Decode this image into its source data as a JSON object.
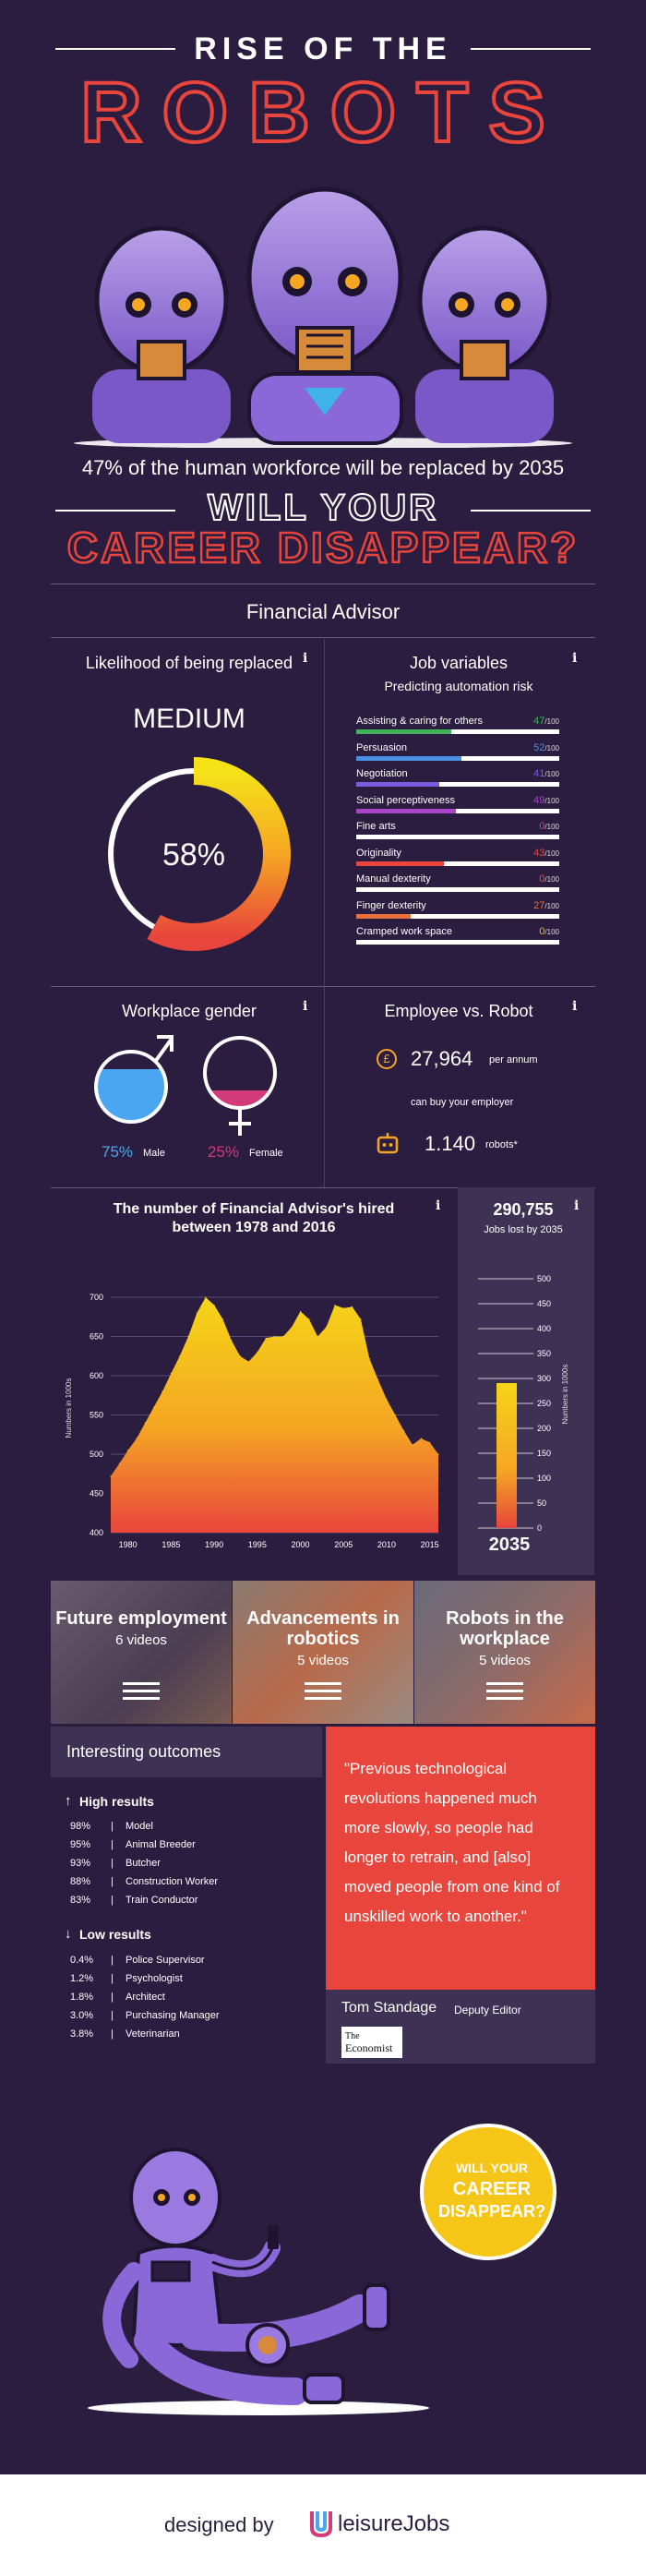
{
  "header": {
    "title_line1": "RISE OF THE",
    "title_line2": "ROBOTS",
    "subtitle": "47% of the human workforce will be replaced by 2035",
    "question_line1": "WILL YOUR",
    "question_line2": "CAREER DISAPPEAR?"
  },
  "job_title": "Financial Advisor",
  "likelihood": {
    "title": "Likelihood of being replaced",
    "level": "MEDIUM",
    "percent_label": "58%",
    "percent": 58
  },
  "job_variables": {
    "title": "Job variables",
    "subtitle": "Predicting automation risk",
    "suffix": "/100",
    "items": [
      {
        "label": "Assisting & caring for others",
        "value": "47",
        "color": "#3fb25a"
      },
      {
        "label": "Persuasion",
        "value": "52",
        "color": "#4a90e2"
      },
      {
        "label": "Negotiation",
        "value": "41",
        "color": "#7b5ce0"
      },
      {
        "label": "Social perceptiveness",
        "value": "49",
        "color": "#a945c9"
      },
      {
        "label": "Fine arts",
        "value": "0",
        "color": "#d23fb5"
      },
      {
        "label": "Originality",
        "value": "43",
        "color": "#e8453c"
      },
      {
        "label": "Manual dexterity",
        "value": "0",
        "color": "#e85a3c"
      },
      {
        "label": "Finger dexterity",
        "value": "27",
        "color": "#e8703c"
      },
      {
        "label": "Cramped work space",
        "value": "0",
        "color": "#f5b818"
      }
    ]
  },
  "gender": {
    "title": "Workplace gender",
    "male_pct": "75%",
    "male_label": "Male",
    "female_pct": "25%",
    "female_label": "Female"
  },
  "employee_robot": {
    "title": "Employee vs. Robot",
    "salary": "27,964",
    "salary_unit": "per annum",
    "middle_text": "can buy your employer",
    "robots": "1.140",
    "robots_unit": "robots*"
  },
  "hired_chart": {
    "title_line1": "The number of Financial Advisor's hired",
    "title_line2": "between 1978 and 2016",
    "ylabel": "Numbers in 1000s"
  },
  "jobs_lost": {
    "value": "290,755",
    "label": "Jobs lost by 2035",
    "year": "2035",
    "ylabel": "Numbers in 1000s"
  },
  "chart_data": [
    {
      "type": "area",
      "title": "The number of Financial Advisor's hired between 1978 and 2016",
      "xlabel": "",
      "ylabel": "Numbers in 1000s",
      "x": [
        1978,
        1979,
        1980,
        1981,
        1982,
        1983,
        1984,
        1985,
        1986,
        1987,
        1988,
        1989,
        1990,
        1991,
        1992,
        1993,
        1994,
        1995,
        1996,
        1997,
        1998,
        1999,
        2000,
        2001,
        2002,
        2003,
        2004,
        2005,
        2006,
        2007,
        2008,
        2009,
        2010,
        2011,
        2012,
        2013,
        2014,
        2015,
        2016
      ],
      "values": [
        472,
        488,
        505,
        520,
        540,
        560,
        580,
        603,
        625,
        650,
        680,
        700,
        690,
        672,
        645,
        625,
        618,
        630,
        648,
        650,
        650,
        662,
        682,
        672,
        650,
        662,
        690,
        686,
        688,
        672,
        622,
        595,
        570,
        550,
        530,
        512,
        520,
        515,
        500
      ],
      "xticks": [
        "1980",
        "1985",
        "1990",
        "1995",
        "2000",
        "2005",
        "2010",
        "2015"
      ],
      "yticks": [
        "400",
        "450",
        "500",
        "550",
        "600",
        "650",
        "700"
      ],
      "ylim": [
        400,
        700
      ]
    },
    {
      "type": "bar",
      "title": "Jobs lost by 2035",
      "categories": [
        "2035"
      ],
      "values": [
        290.755
      ],
      "ylabel": "Numbers in 1000s",
      "yticks": [
        "0",
        "50",
        "100",
        "150",
        "200",
        "250",
        "300",
        "350",
        "400",
        "450",
        "500"
      ],
      "ylim": [
        0,
        500
      ]
    }
  ],
  "videos": [
    {
      "title_line1": "Future employment",
      "title_line2": "",
      "count": "6 videos"
    },
    {
      "title_line1": "Advancements in",
      "title_line2": "robotics",
      "count": "5 videos"
    },
    {
      "title_line1": "Robots in the",
      "title_line2": "workplace",
      "count": "5 videos"
    }
  ],
  "outcomes": {
    "title": "Interesting outcomes",
    "high_title": "High results",
    "high": [
      {
        "pct": "98%",
        "name": "Model"
      },
      {
        "pct": "95%",
        "name": "Animal Breeder"
      },
      {
        "pct": "93%",
        "name": "Butcher"
      },
      {
        "pct": "88%",
        "name": "Construction Worker"
      },
      {
        "pct": "83%",
        "name": "Train Conductor"
      }
    ],
    "low_title": "Low results",
    "low": [
      {
        "pct": "0.4%",
        "name": "Police Supervisor"
      },
      {
        "pct": "1.2%",
        "name": "Psychologist"
      },
      {
        "pct": "1.8%",
        "name": "Architect"
      },
      {
        "pct": "3.0%",
        "name": "Purchasing Manager"
      },
      {
        "pct": "3.8%",
        "name": "Veterinarian"
      }
    ]
  },
  "quote": {
    "text": "\"Previous technological revolutions happened much more slowly, so people had longer to retrain, and [also] moved people from one kind of unskilled work to another.\"",
    "author": "Tom Standage",
    "role": "Deputy Editor",
    "publication_line1": "The",
    "publication_line2": "Economist"
  },
  "bubble": {
    "line1": "WILL YOUR",
    "line2": "CAREER",
    "line3": "DISAPPEAR?"
  },
  "footer": {
    "prefix": "designed by",
    "brand": "leisureJobs"
  },
  "colors": {
    "background": "#2a1d3f",
    "accent_red": "#e8453c",
    "accent_yellow": "#f5c518",
    "male_blue": "#4aa6f0",
    "female_pink": "#d23a7a"
  },
  "icons": {
    "info": "info-icon",
    "male": "male-symbol-icon",
    "female": "female-symbol-icon",
    "pound": "pound-coin-icon",
    "robot": "robot-head-icon",
    "menu": "menu-icon",
    "arrow_up": "arrow-up-icon",
    "arrow_down": "arrow-down-icon"
  }
}
